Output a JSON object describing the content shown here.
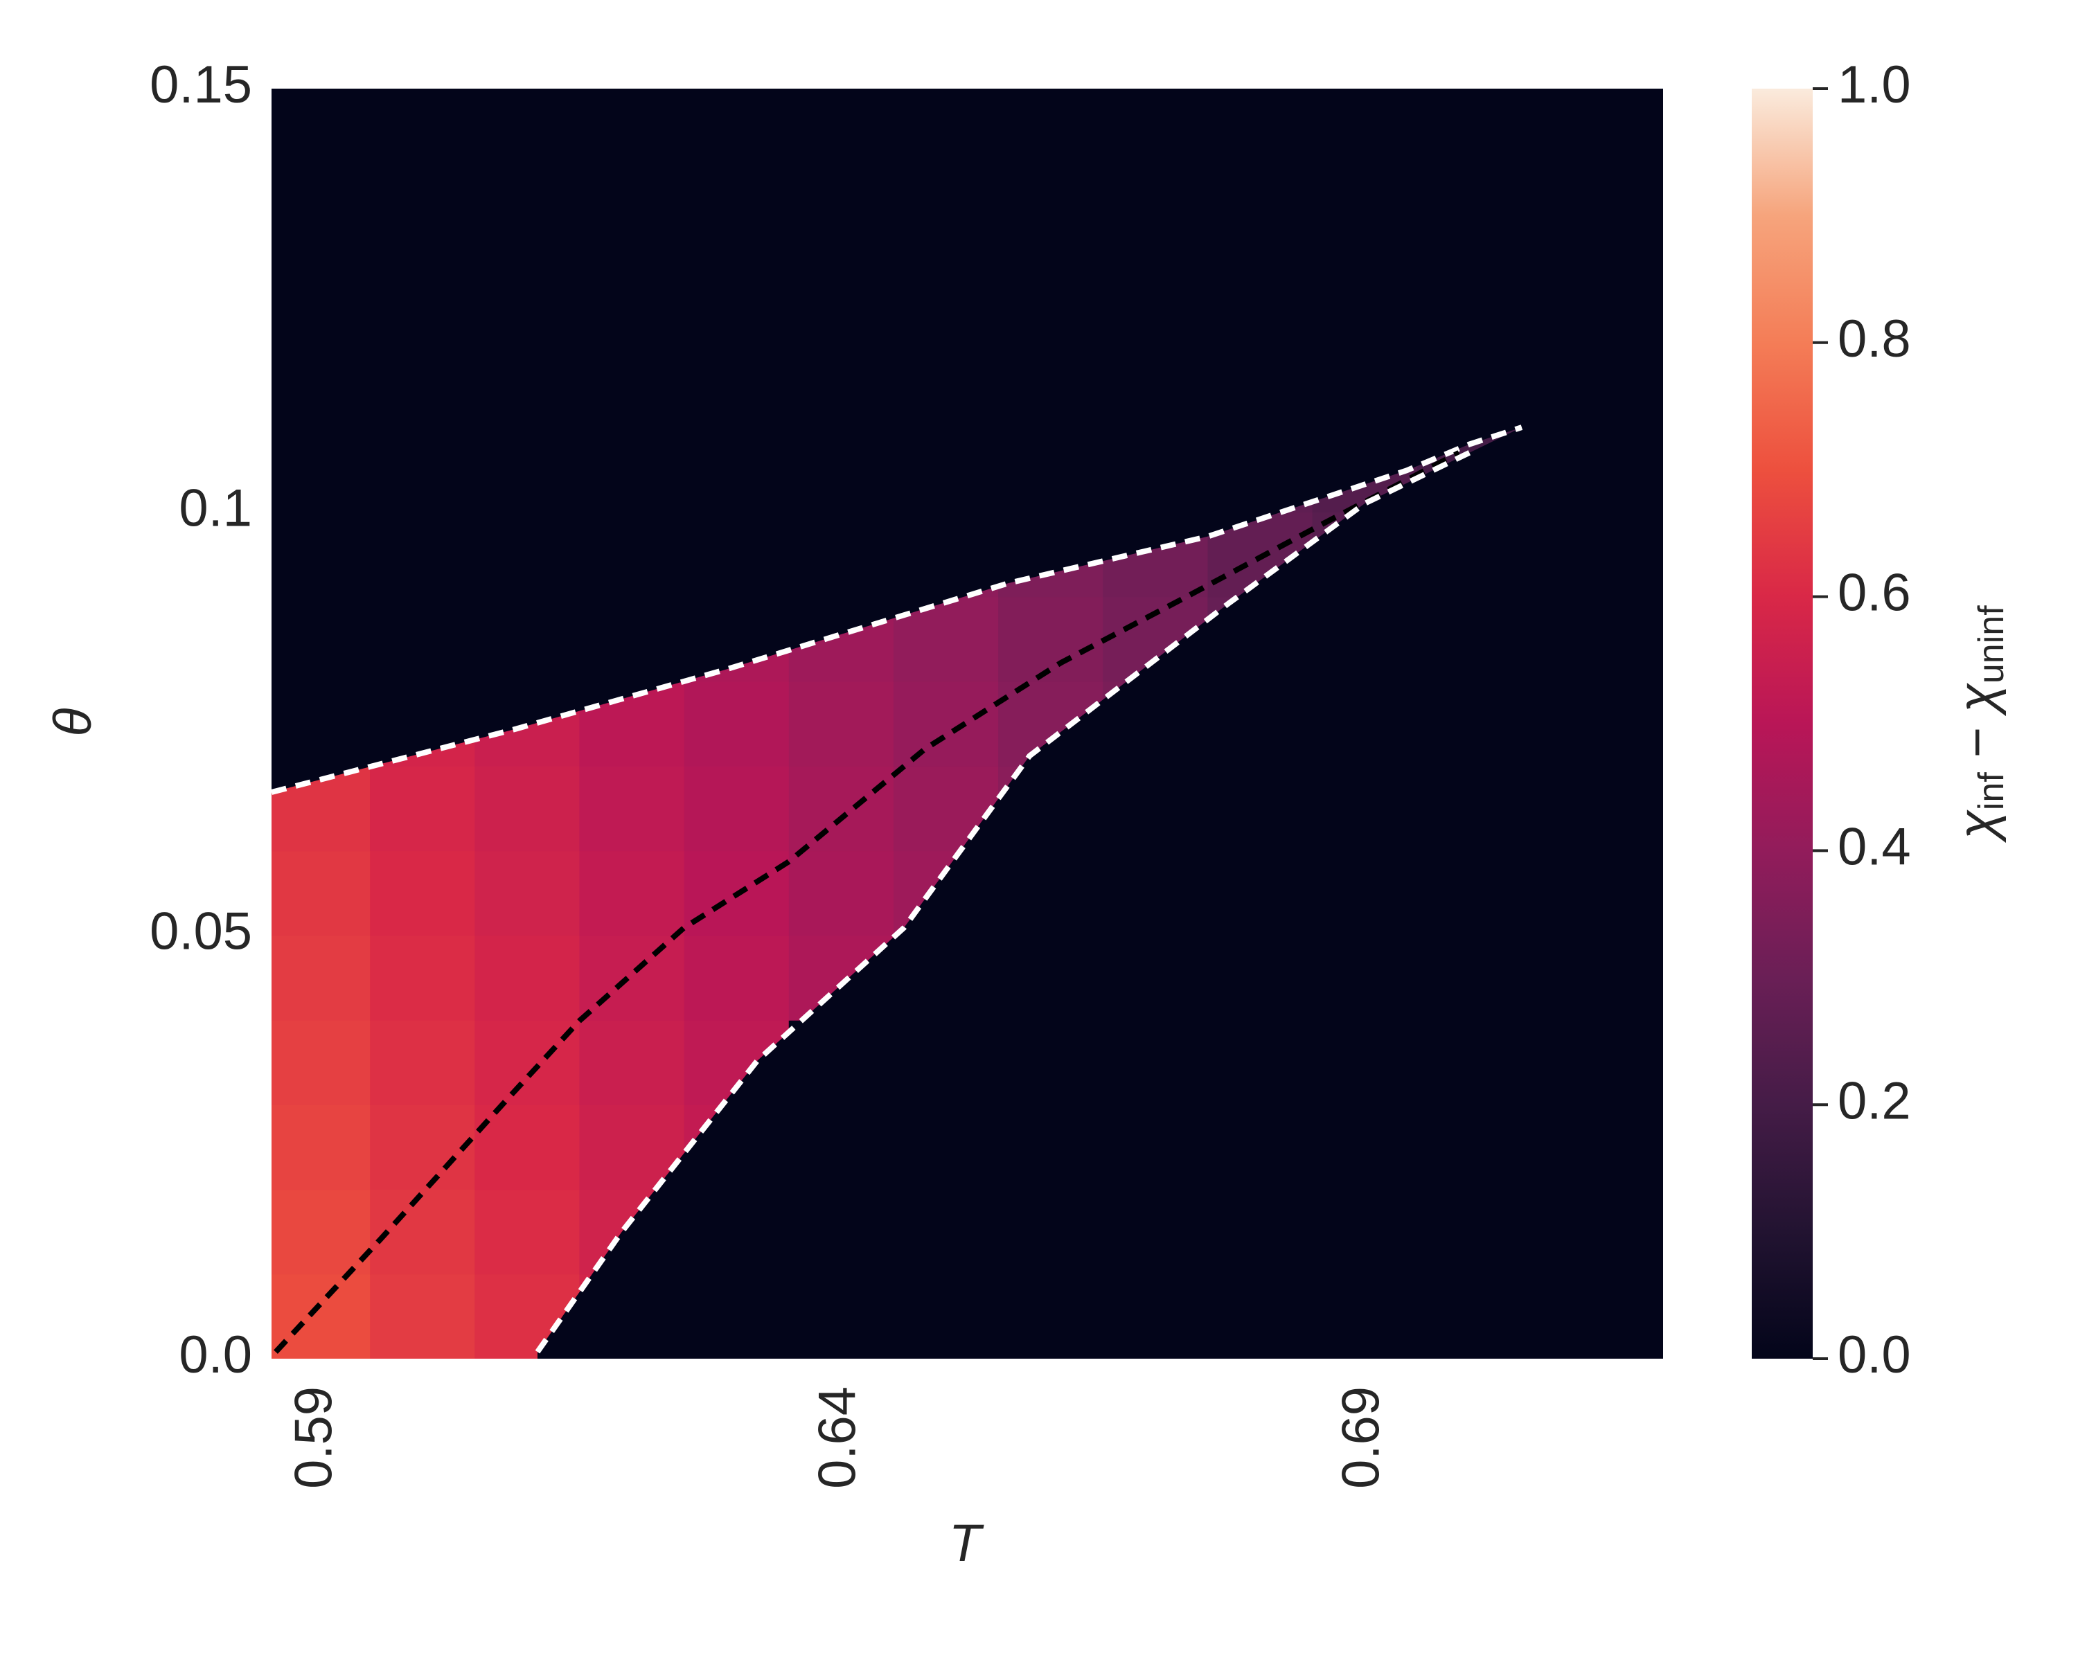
{
  "chart_data": {
    "type": "heatmap",
    "xlabel": "T",
    "ylabel": "θ",
    "colorbar_label": {
      "a": "χ",
      "a_sub": "inf",
      "op": " − ",
      "b": "χ",
      "b_sub": "uninf"
    },
    "x": [
      0.59,
      0.6,
      0.61,
      0.62,
      0.63,
      0.64,
      0.65,
      0.66,
      0.67,
      0.68,
      0.69,
      0.7,
      0.71
    ],
    "y": [
      0.005,
      0.015,
      0.025,
      0.035,
      0.045,
      0.055,
      0.065,
      0.075,
      0.085,
      0.095,
      0.105,
      0.115,
      0.125,
      0.135,
      0.145
    ],
    "z": [
      [
        0.69,
        0.65,
        0.62,
        0.58,
        0,
        0,
        0,
        0,
        0,
        0,
        0,
        0,
        0
      ],
      [
        0.68,
        0.64,
        0.61,
        0.57,
        0,
        0,
        0,
        0,
        0,
        0,
        0,
        0,
        0
      ],
      [
        0.67,
        0.63,
        0.6,
        0.56,
        0.53,
        0,
        0,
        0,
        0,
        0,
        0,
        0,
        0
      ],
      [
        0.66,
        0.62,
        0.59,
        0.55,
        0.52,
        0,
        0,
        0,
        0,
        0,
        0,
        0,
        0
      ],
      [
        0.65,
        0.61,
        0.58,
        0.54,
        0.51,
        0.47,
        0,
        0,
        0,
        0,
        0,
        0,
        0
      ],
      [
        0.64,
        0.6,
        0.57,
        0.53,
        0.5,
        0.46,
        0.43,
        0,
        0,
        0,
        0,
        0,
        0
      ],
      [
        0.63,
        0.59,
        0.56,
        0.52,
        0.49,
        0.45,
        0.42,
        0.38,
        0,
        0,
        0,
        0,
        0
      ],
      [
        0,
        0.58,
        0.55,
        0.51,
        0.48,
        0.44,
        0.41,
        0.37,
        0.34,
        0,
        0,
        0,
        0
      ],
      [
        0,
        0,
        0,
        0,
        0.47,
        0.43,
        0.4,
        0.36,
        0.33,
        0.29,
        0,
        0,
        0
      ],
      [
        0,
        0,
        0,
        0,
        0,
        0,
        0.39,
        0.35,
        0.32,
        0.28,
        0.25,
        0,
        0
      ],
      [
        0,
        0,
        0,
        0,
        0,
        0,
        0,
        0,
        0,
        0.27,
        0.24,
        0.2,
        0
      ],
      [
        0,
        0,
        0,
        0,
        0,
        0,
        0,
        0,
        0,
        0,
        0,
        0,
        0
      ],
      [
        0,
        0,
        0,
        0,
        0,
        0,
        0,
        0,
        0,
        0,
        0,
        0,
        0
      ],
      [
        0,
        0,
        0,
        0,
        0,
        0,
        0,
        0,
        0,
        0,
        0,
        0,
        0
      ],
      [
        0,
        0,
        0,
        0,
        0,
        0,
        0,
        0,
        0,
        0,
        0,
        0,
        0
      ]
    ],
    "xlim": [
      0.5856,
      0.7185
    ],
    "ylim": [
      0,
      0.15
    ],
    "xticks": [
      0.59,
      0.64,
      0.69
    ],
    "yticks": [
      {
        "value": 0,
        "label": "0.0"
      },
      0.05,
      0.1,
      0.15
    ],
    "clim": [
      0,
      1
    ],
    "cticks": [
      {
        "value": 0,
        "label": "0.0"
      },
      0.2,
      0.4,
      0.6,
      0.8,
      {
        "value": 1,
        "label": "1.0"
      }
    ],
    "cmap": [
      "#03051a",
      "#221331",
      "#451c47",
      "#6a1f56",
      "#921c5b",
      "#b91657",
      "#d92847",
      "#ed503e",
      "#f47d57",
      "#f6a47c",
      "#faebdd"
    ],
    "curves": [
      {
        "color": "#ffffff",
        "linestyle": "dashed",
        "x": [
          0.5856,
          0.609,
          0.629,
          0.656,
          0.675,
          0.694,
          0.7,
          0.705
        ],
        "y": [
          0.0669,
          0.0744,
          0.0814,
          0.0916,
          0.0971,
          0.1049,
          0.108,
          0.11
        ]
      },
      {
        "color": "#000000",
        "linestyle": "dashed",
        "x": [
          0.586,
          0.596,
          0.608,
          0.615,
          0.625,
          0.635,
          0.648,
          0.661,
          0.673,
          0.686,
          0.699
        ],
        "y": [
          0.0008,
          0.0141,
          0.0305,
          0.0399,
          0.0509,
          0.0587,
          0.072,
          0.0822,
          0.09,
          0.0986,
          0.107
        ]
      },
      {
        "color": "#ffffff",
        "linestyle": "dashed",
        "x": [
          0.611,
          0.619,
          0.632,
          0.646,
          0.658,
          0.677,
          0.69,
          0.7
        ],
        "y": [
          0.0008,
          0.0149,
          0.0352,
          0.0509,
          0.0712,
          0.0892,
          0.101,
          0.107
        ]
      }
    ],
    "grid": false
  }
}
